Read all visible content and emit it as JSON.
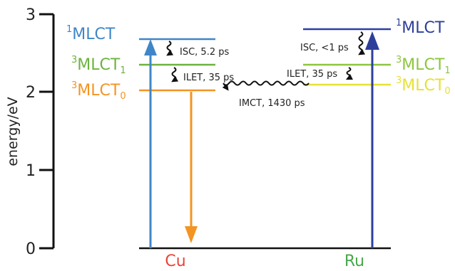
{
  "axis": {
    "label": "energy/eV",
    "ticks": [
      "0",
      "1",
      "2",
      "3"
    ]
  },
  "levels": {
    "cu_1mlct": {
      "sup": "1",
      "base": "MLCT",
      "sub": "",
      "color": "#3f86c8"
    },
    "cu_3mlct1": {
      "sup": "3",
      "base": "MLCT",
      "sub": "1",
      "color": "#6db33f"
    },
    "cu_3mlct0": {
      "sup": "3",
      "base": "MLCT",
      "sub": "0",
      "color": "#f39423"
    },
    "ru_1mlct": {
      "sup": "1",
      "base": "MLCT",
      "sub": "",
      "color": "#2e3f9a"
    },
    "ru_3mlct1": {
      "sup": "3",
      "base": "MLCT",
      "sub": "1",
      "color": "#8dc63f"
    },
    "ru_3mlct0": {
      "sup": "3",
      "base": "MLCT",
      "sub": "0",
      "color": "#e6e235"
    }
  },
  "annotations": {
    "cu_isc": "ISC, 5.2 ps",
    "cu_ilet": "ILET, 35 ps",
    "ru_isc": "ISC, <1 ps",
    "ru_ilet": "ILET, 35 ps",
    "imct": "IMCT, 1430 ps"
  },
  "metals": {
    "cu": {
      "label": "Cu",
      "color": "#e8443a"
    },
    "ru": {
      "label": "Ru",
      "color": "#4aa84a"
    }
  },
  "icons": {
    "excitation_arrow": "arrow-up-icon",
    "emission_arrow": "arrow-down-icon",
    "isc_arrow": "wavy-arrow-icon"
  }
}
